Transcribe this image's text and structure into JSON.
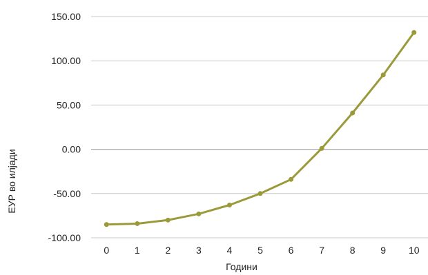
{
  "chart_data": {
    "type": "line",
    "title": "",
    "xlabel": "Години",
    "ylabel": "ЕУР во илјади",
    "x": [
      0,
      1,
      2,
      3,
      4,
      5,
      6,
      7,
      8,
      9,
      10
    ],
    "series": [
      {
        "values": [
          -85,
          -84,
          -80,
          -73,
          -63,
          -50,
          -34,
          1,
          41,
          84,
          132
        ]
      }
    ],
    "ylim": [
      -100,
      150
    ],
    "yticks": [
      -100,
      -50,
      0,
      50,
      100,
      150
    ],
    "ytick_labels": [
      "-100.00",
      "-50.00",
      "0.00",
      "50.00",
      "100.00",
      "150.00"
    ],
    "xtick_labels": [
      "0",
      "1",
      "2",
      "3",
      "4",
      "5",
      "6",
      "7",
      "8",
      "9",
      "10"
    ],
    "grid": true,
    "legend": "none",
    "colors": {
      "series": "#9a9a3a",
      "grid": "#c8c8c8",
      "zero_line": "#9a9a9a"
    }
  }
}
